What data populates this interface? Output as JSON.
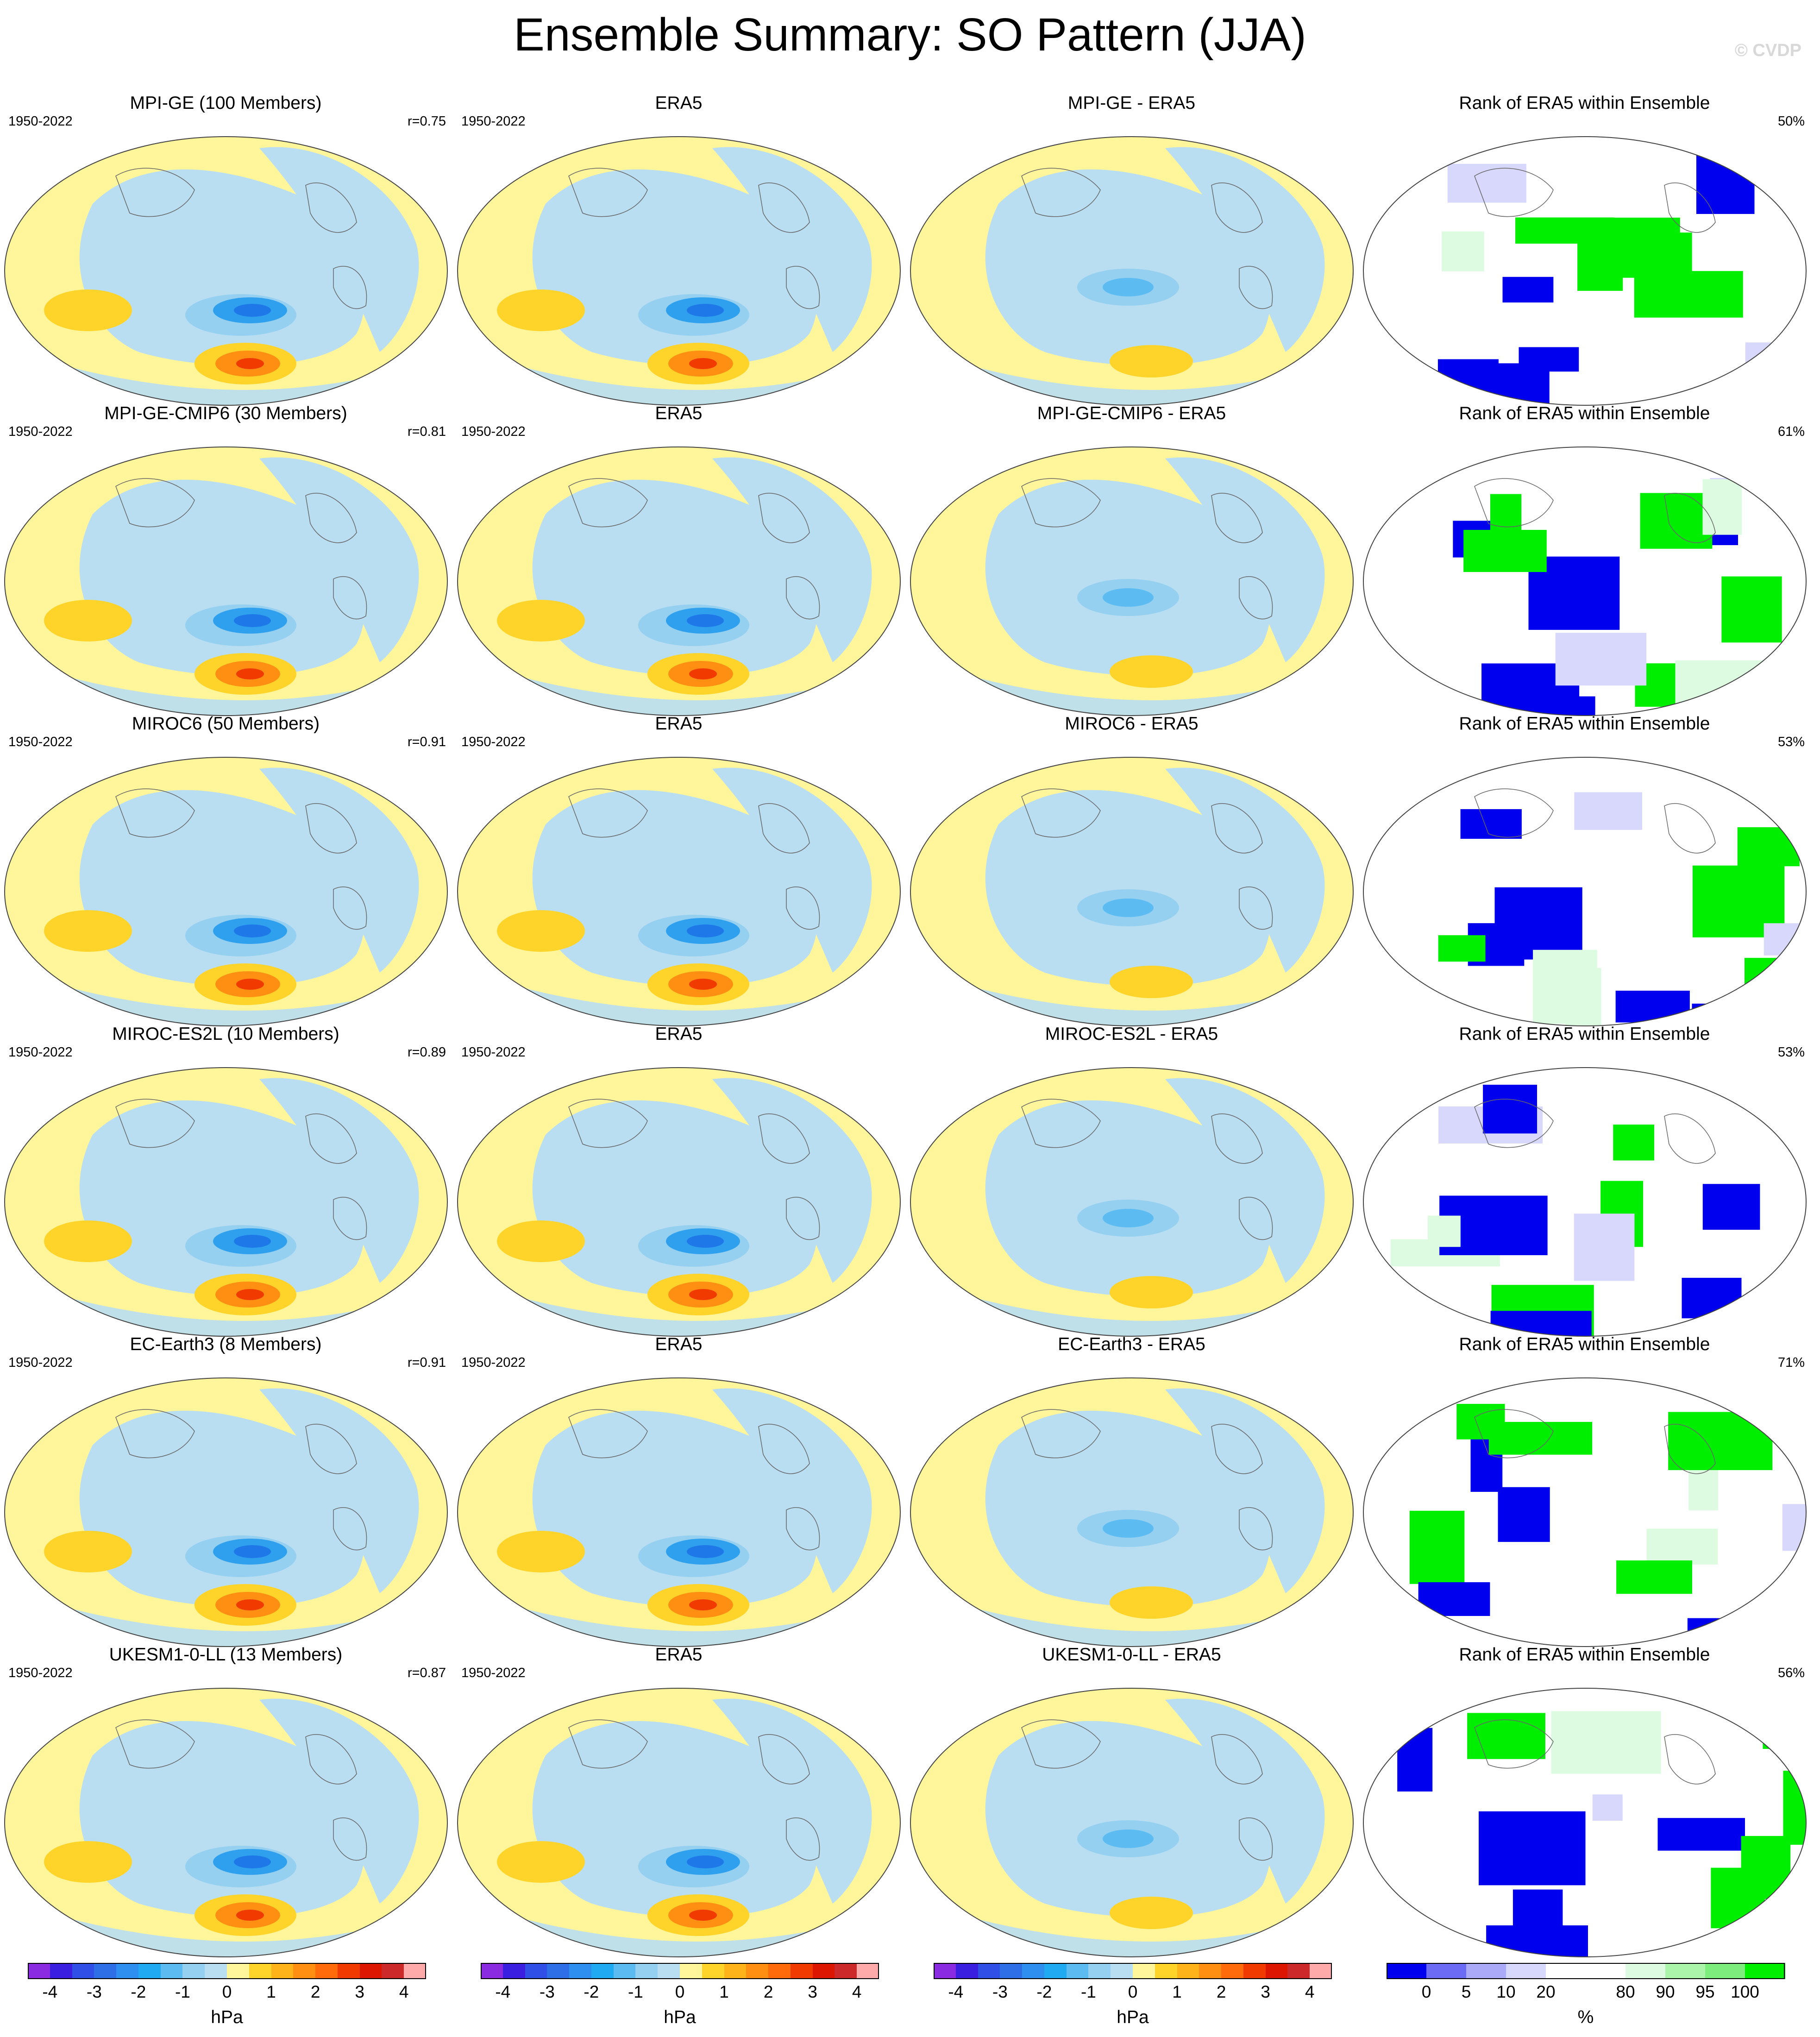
{
  "title": "Ensemble Summary: SO Pattern (JJA)",
  "credit": "© CVDP",
  "period": "1950-2022",
  "rows": [
    {
      "model": "MPI-GE (100 Members)",
      "r": "r=0.75",
      "diff": "MPI-GE - ERA5",
      "pct": "50%"
    },
    {
      "model": "MPI-GE-CMIP6 (30 Members)",
      "r": "r=0.81",
      "diff": "MPI-GE-CMIP6 - ERA5",
      "pct": "61%"
    },
    {
      "model": "MIROC6 (50 Members)",
      "r": "r=0.91",
      "diff": "MIROC6 - ERA5",
      "pct": "53%"
    },
    {
      "model": "MIROC-ES2L (10 Members)",
      "r": "r=0.89",
      "diff": "MIROC-ES2L - ERA5",
      "pct": "53%"
    },
    {
      "model": "EC-Earth3 (8 Members)",
      "r": "r=0.91",
      "diff": "EC-Earth3 - ERA5",
      "pct": "71%"
    },
    {
      "model": "UKESM1-0-LL (13 Members)",
      "r": "r=0.87",
      "diff": "UKESM1-0-LL - ERA5",
      "pct": "56%"
    }
  ],
  "obs_title": "ERA5",
  "rank_title": "Rank of ERA5 within Ensemble",
  "hpa_colorbar": {
    "unit": "hPa",
    "ticks": [
      "-4",
      "-3",
      "-2",
      "-1",
      "0",
      "1",
      "2",
      "3",
      "4"
    ],
    "colors": [
      "#8a2be2",
      "#3a1fe0",
      "#2f4fe6",
      "#2e6fe8",
      "#2f8ff0",
      "#1faaf2",
      "#5cbcf2",
      "#95d0f0",
      "#b9def2",
      "#fff59a",
      "#ffd42a",
      "#ffb31a",
      "#ff8f12",
      "#ff6a0a",
      "#f03a00",
      "#dc1600",
      "#cc2a2a",
      "#ffaaaa"
    ]
  },
  "rank_colorbar": {
    "unit": "%",
    "ticks": [
      "0",
      "5",
      "10",
      "20",
      "80",
      "90",
      "95",
      "100"
    ],
    "colors": [
      "#0000ee",
      "#6b6bf5",
      "#aaaaf8",
      "#d8d8fc",
      "#ffffff",
      "#ffffff",
      "#ddfbe0",
      "#aaf5aa",
      "#7ded7d",
      "#00ee00"
    ]
  }
}
